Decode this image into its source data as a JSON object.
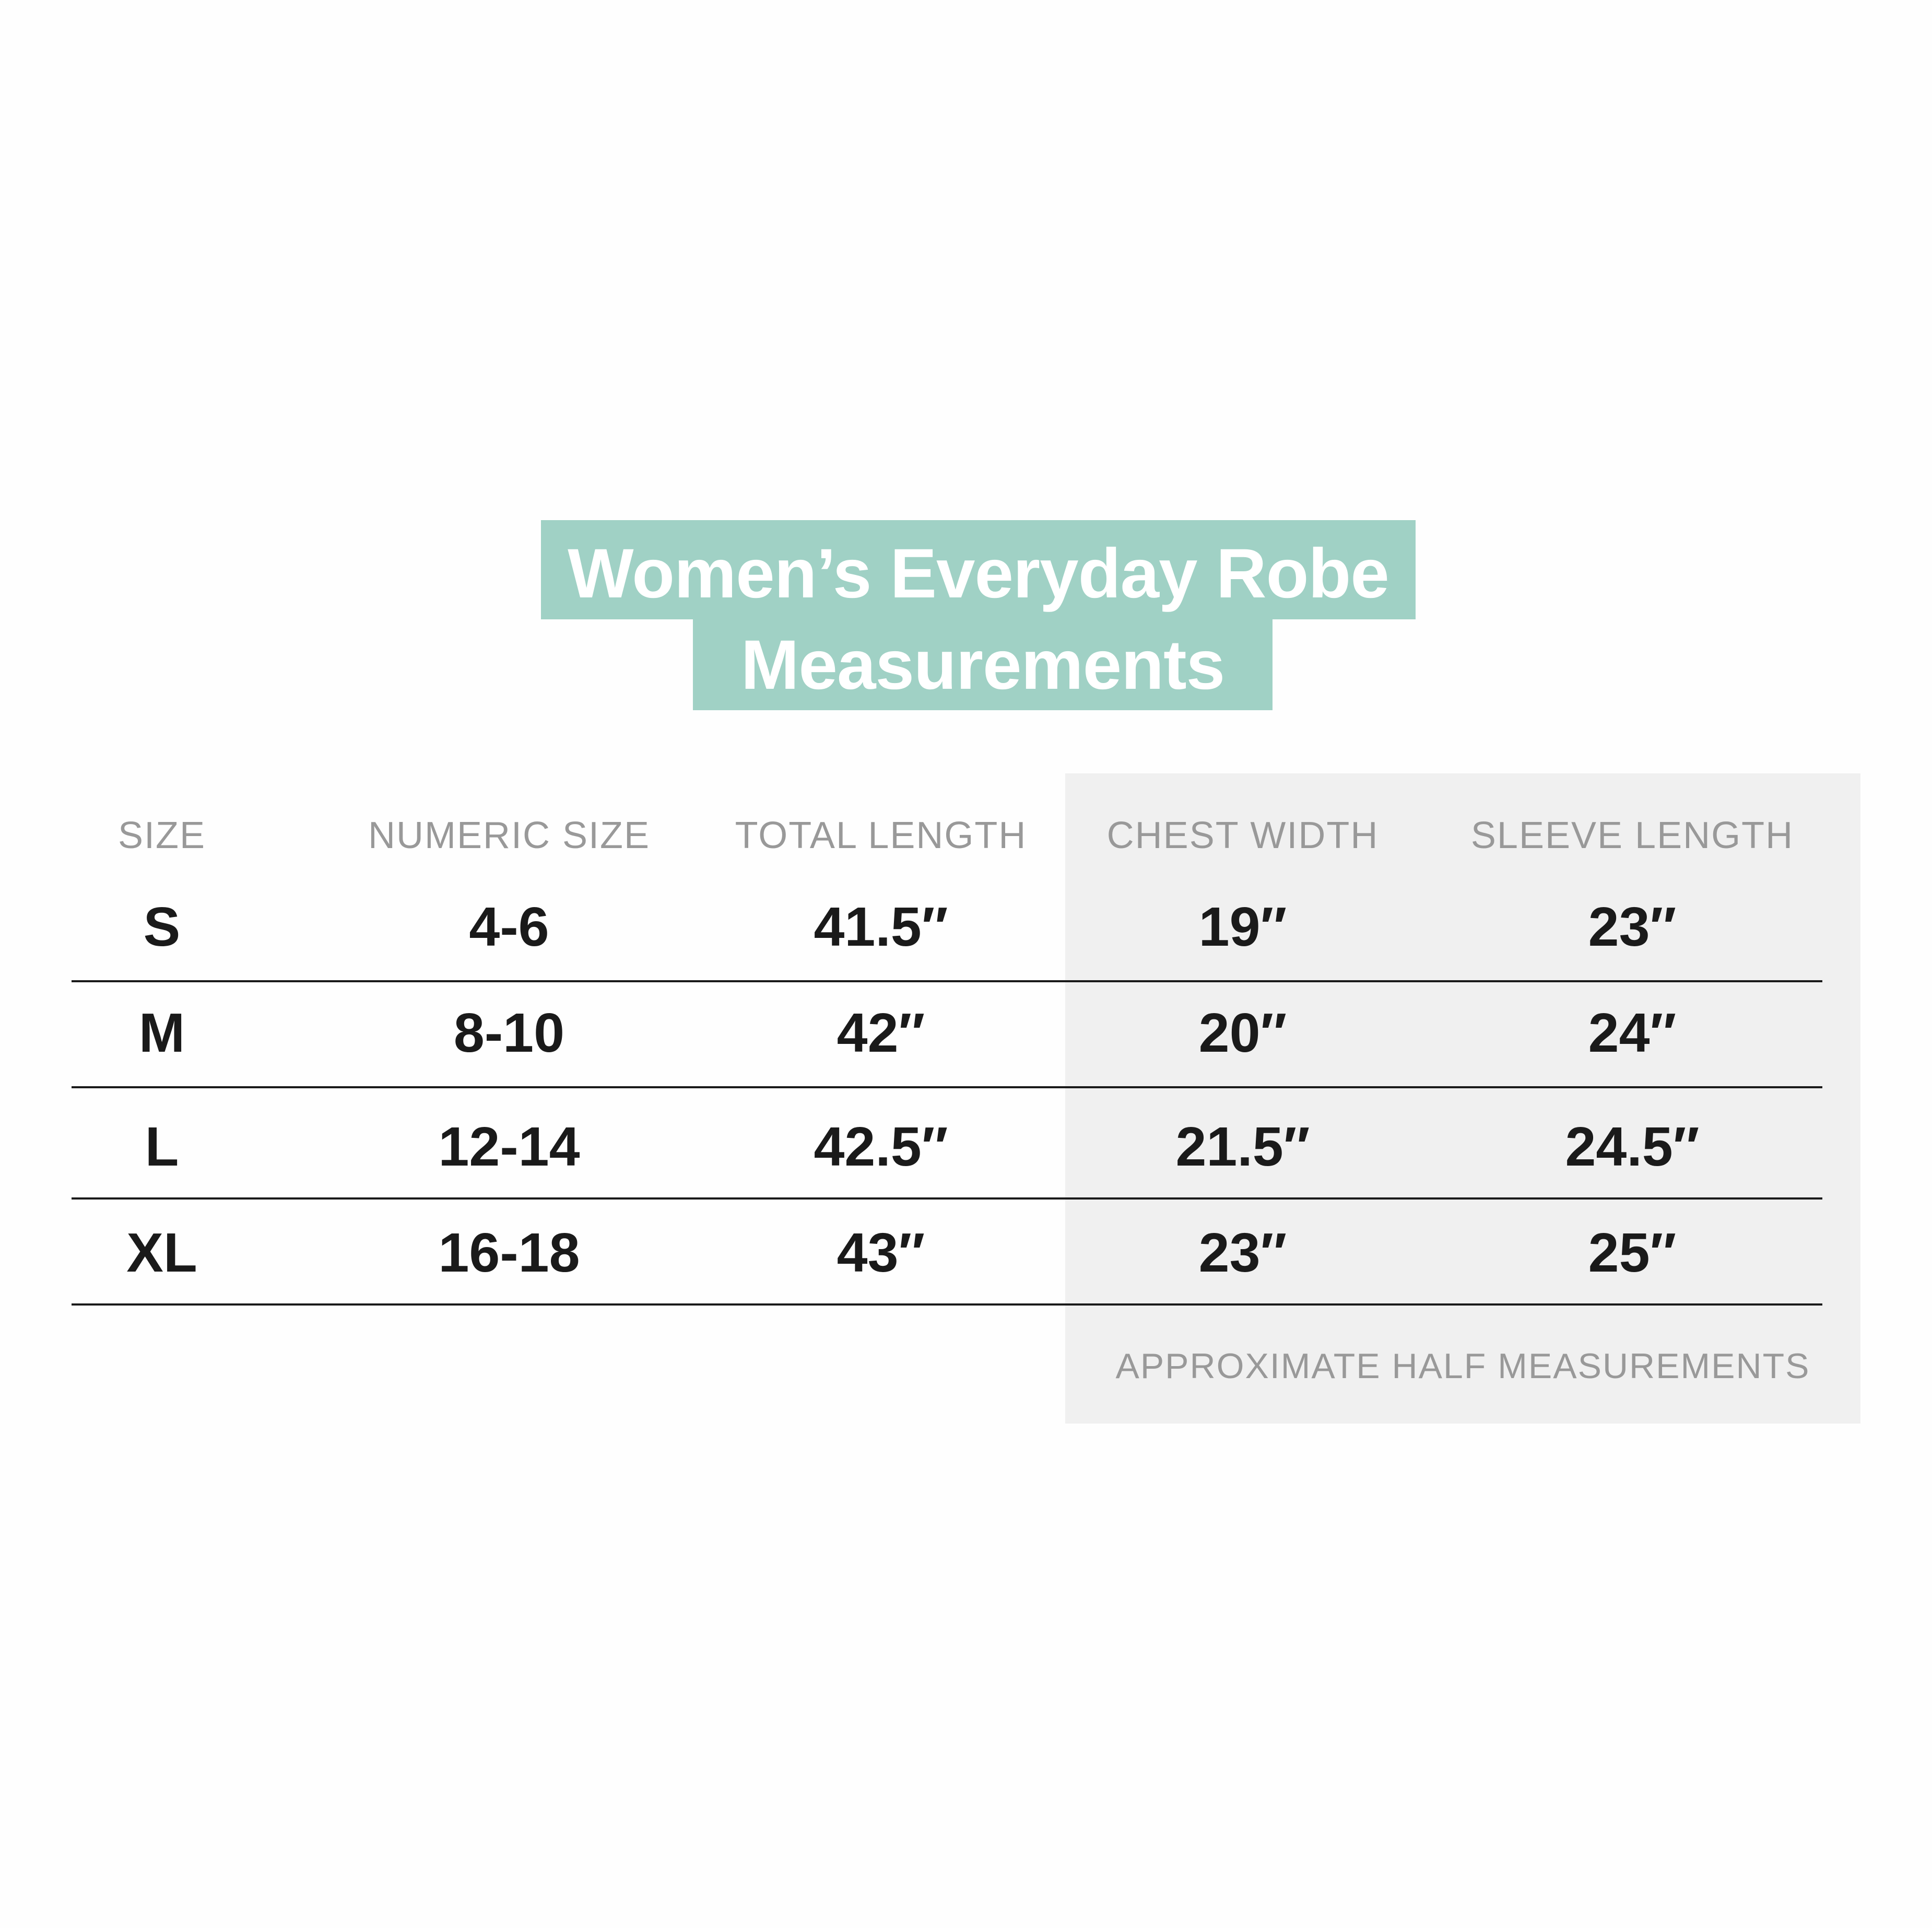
{
  "title": {
    "line1": "Women’s Everyday Robe",
    "line2": "Measurements",
    "color": "#a0d1c5"
  },
  "table": {
    "headers": [
      "SIZE",
      "NUMERIC SIZE",
      "TOTAL LENGTH",
      "CHEST WIDTH",
      "SLEEVE LENGTH"
    ],
    "rows": [
      [
        "S",
        "4-6",
        "41.5″",
        "19″",
        "23″"
      ],
      [
        "M",
        "8-10",
        "42″",
        "20″",
        "24″"
      ],
      [
        "L",
        "12-14",
        "42.5″",
        "21.5″",
        "24.5″"
      ],
      [
        "XL",
        "16-18",
        "43″",
        "23″",
        "25″"
      ]
    ],
    "note": "APPROXIMATE HALF MEASUREMENTS",
    "highlight_color": "#f0f0f0"
  }
}
